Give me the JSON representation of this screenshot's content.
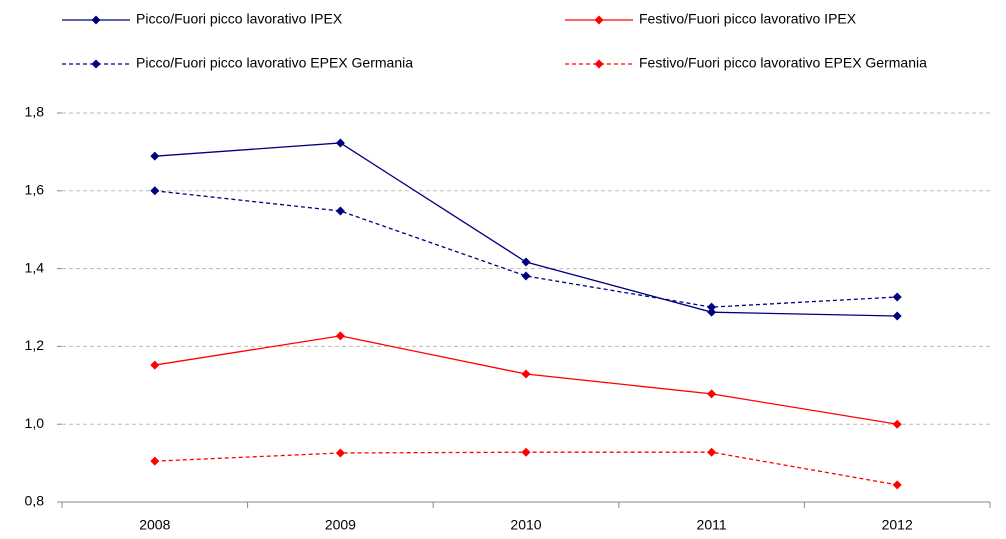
{
  "chart_data": {
    "type": "line",
    "categories": [
      "2008",
      "2009",
      "2010",
      "2011",
      "2012"
    ],
    "series": [
      {
        "name": "Picco/Fuori picco lavorativo IPEX",
        "color": "#000080",
        "line_style": "solid",
        "values": [
          1.689,
          1.723,
          1.417,
          1.288,
          1.278
        ]
      },
      {
        "name": "Festivo/Fuori picco lavorativo IPEX",
        "color": "#ff0000",
        "line_style": "solid",
        "values": [
          1.152,
          1.227,
          1.129,
          1.078,
          1.0
        ]
      },
      {
        "name": "Picco/Fuori picco lavorativo EPEX Germania",
        "color": "#000080",
        "line_style": "dashed",
        "values": [
          1.6,
          1.548,
          1.381,
          1.301,
          1.327
        ]
      },
      {
        "name": "Festivo/Fuori picco lavorativo EPEX Germania",
        "color": "#ff0000",
        "line_style": "dashed",
        "values": [
          0.905,
          0.926,
          0.928,
          0.928,
          0.844
        ]
      }
    ],
    "ylim": [
      0.8,
      1.8
    ],
    "yticks": [
      {
        "value": 0.8,
        "label": "0,8"
      },
      {
        "value": 1.0,
        "label": "1,0"
      },
      {
        "value": 1.2,
        "label": "1,2"
      },
      {
        "value": 1.4,
        "label": "1,4"
      },
      {
        "value": 1.6,
        "label": "1,6"
      },
      {
        "value": 1.8,
        "label": "1,8"
      }
    ],
    "grid": true
  }
}
